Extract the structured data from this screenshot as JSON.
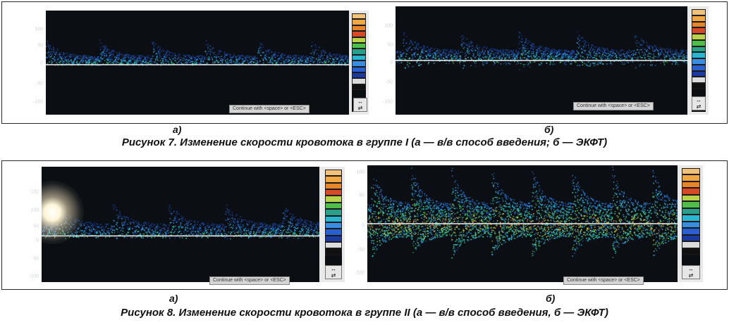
{
  "figure7": {
    "caption": "Рисунок 7. Изменение скорости кровотока в группе I (а — в/в способ введения; б — ЭКФТ)",
    "panels": [
      {
        "label": "а)",
        "button": "Continue with <space> or <ESC>",
        "ticks": [
          "100",
          "50",
          "0",
          "-50",
          "-100"
        ]
      },
      {
        "label": "б)",
        "button": "Continue with <space> or <ESC>",
        "ticks": [
          "100",
          "50",
          "0",
          "-50",
          "-100"
        ]
      }
    ]
  },
  "figure8": {
    "caption": "Рисунок 8. Изменение скорости кровотока в группе II (а — в/в способ введения, б — ЭКФТ)",
    "panels": [
      {
        "label": "а)",
        "button": "Continue with <space> or <ESC>",
        "ticks": [
          "150",
          "100",
          "50",
          "0",
          "-50",
          "-100"
        ]
      },
      {
        "label": "б)",
        "button": "Continue with <space> or <ESC>",
        "ticks": [
          "100",
          "50",
          "0",
          "-50",
          "-100"
        ]
      }
    ]
  },
  "color_scale": {
    "swatches": [
      "#f3c27a",
      "#f0a845",
      "#e6852a",
      "#d64a28",
      "#b8d24a",
      "#4fbf4a",
      "#2aa08a",
      "#2ab6d0",
      "#3a8ee0",
      "#2a5fd0",
      "#1d3aa0",
      "#dcdcdc",
      "#111111"
    ]
  },
  "arrows": [
    "↔",
    "⇄"
  ]
}
